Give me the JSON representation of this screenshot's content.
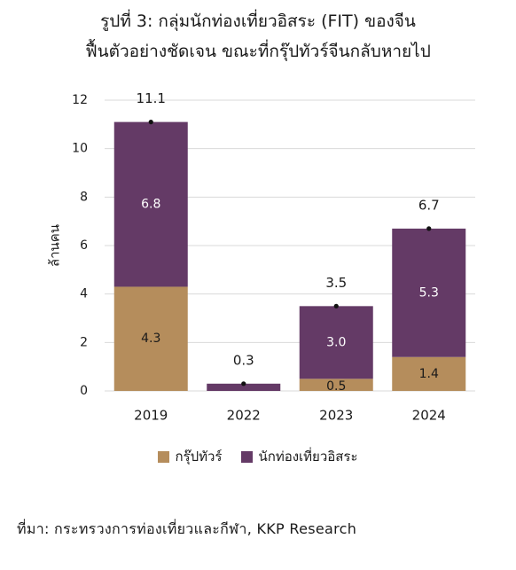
{
  "title_line1": "รูปที่ 3: กลุ่มนักท่องเที่ยวอิสระ (FIT) ของจีน",
  "title_line2": "ฟื้นตัวอย่างชัดเจน ขณะที่กรุ๊ปทัวร์จีนกลับหายไป",
  "source": "ที่มา: กระทรวงการท่องเที่ยวและกีฬา, KKP Research",
  "colors": {
    "group_tour": "#b58d5c",
    "fit": "#643a66",
    "grid": "#d9d9d9"
  },
  "chart_data": {
    "type": "bar",
    "stacked": true,
    "categories": [
      "2019",
      "2022",
      "2023",
      "2024"
    ],
    "ylabel": "ล้านคน",
    "ylim": [
      0,
      12
    ],
    "yticks": [
      0,
      2,
      4,
      6,
      8,
      10,
      12
    ],
    "grid": true,
    "legend_position": "bottom",
    "series": [
      {
        "name": "กรุ๊ปทัวร์",
        "values": [
          4.3,
          0.0,
          0.5,
          1.4
        ],
        "labels": [
          "4.3",
          "",
          "0.5",
          "1.4"
        ]
      },
      {
        "name": "นักท่องเที่ยวอิสระ",
        "values": [
          6.8,
          0.3,
          3.0,
          5.3
        ],
        "labels": [
          "6.8",
          "",
          "3.0",
          "5.3"
        ]
      }
    ],
    "totals": [
      11.1,
      0.3,
      3.5,
      6.7
    ],
    "total_labels": [
      "11.1",
      "0.3",
      "3.5",
      "6.7"
    ]
  }
}
